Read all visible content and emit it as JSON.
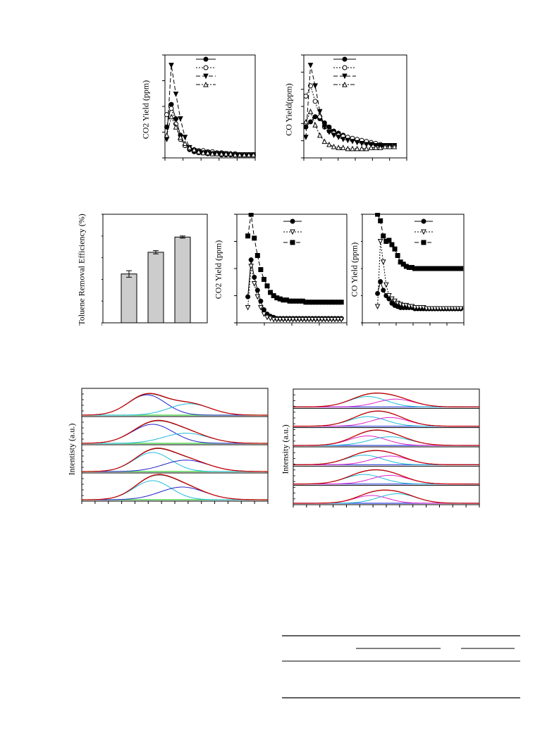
{
  "chart_data": [
    {
      "type": "line",
      "ylabel": "CO2 Yield (ppm)",
      "series": [
        {
          "marker": "filled-circle",
          "values": [
            0.3,
            0.52,
            0.38,
            0.22,
            0.12,
            0.08,
            0.06,
            0.05,
            0.05,
            0.04,
            0.04,
            0.04,
            0.03,
            0.03,
            0.03,
            0.03,
            0.03,
            0.03,
            0.03,
            0.03
          ]
        },
        {
          "marker": "open-circle",
          "values": [
            0.42,
            0.48,
            0.33,
            0.18,
            0.12,
            0.09,
            0.08,
            0.07,
            0.07,
            0.06,
            0.06,
            0.05,
            0.05,
            0.04,
            0.04,
            0.04,
            0.03,
            0.03,
            0.03,
            0.03
          ]
        },
        {
          "marker": "filled-down-triangle",
          "values": [
            0.18,
            0.9,
            0.62,
            0.38,
            0.2,
            0.1,
            0.07,
            0.06,
            0.05,
            0.05,
            0.04,
            0.04,
            0.04,
            0.04,
            0.03,
            0.03,
            0.03,
            0.03,
            0.03,
            0.03
          ]
        },
        {
          "marker": "open-up-triangle",
          "values": [
            0.22,
            0.4,
            0.3,
            0.2,
            0.14,
            0.1,
            0.08,
            0.06,
            0.05,
            0.05,
            0.04,
            0.04,
            0.04,
            0.04,
            0.04,
            0.03,
            0.03,
            0.03,
            0.03,
            0.03
          ]
        }
      ],
      "ylim": [
        0,
        1
      ]
    },
    {
      "type": "line",
      "ylabel": "CO Yield(ppm)",
      "series": [
        {
          "marker": "filled-circle",
          "values": [
            0.3,
            0.35,
            0.4,
            0.38,
            0.34,
            0.3,
            0.26,
            0.24,
            0.22,
            0.2,
            0.18,
            0.17,
            0.16,
            0.15,
            0.14,
            0.13,
            0.12,
            0.12,
            0.12,
            0.12
          ]
        },
        {
          "marker": "open-circle",
          "values": [
            0.6,
            0.7,
            0.55,
            0.4,
            0.3,
            0.26,
            0.24,
            0.22,
            0.21,
            0.2,
            0.19,
            0.18,
            0.17,
            0.16,
            0.15,
            0.14,
            0.13,
            0.12,
            0.12,
            0.12
          ]
        },
        {
          "marker": "filled-down-triangle",
          "values": [
            0.2,
            0.9,
            0.7,
            0.45,
            0.3,
            0.25,
            0.22,
            0.2,
            0.18,
            0.17,
            0.16,
            0.15,
            0.14,
            0.13,
            0.13,
            0.12,
            0.12,
            0.12,
            0.12,
            0.12
          ]
        },
        {
          "marker": "open-up-triangle",
          "values": [
            0.35,
            0.45,
            0.32,
            0.22,
            0.16,
            0.13,
            0.11,
            0.1,
            0.1,
            0.09,
            0.09,
            0.09,
            0.09,
            0.09,
            0.1,
            0.1,
            0.1,
            0.11,
            0.11,
            0.11
          ]
        }
      ],
      "ylim": [
        0,
        1
      ]
    },
    {
      "type": "bar",
      "ylabel": "Toluene Removal Efficiency (%)",
      "values": [
        0.45,
        0.65,
        0.79
      ],
      "errors": [
        0.03,
        0.015,
        0.01
      ],
      "ylim": [
        0,
        1
      ],
      "bar_color": "#cccccc"
    },
    {
      "type": "line",
      "ylabel": "CO2 Yield (ppm)",
      "series": [
        {
          "marker": "filled-circle",
          "values": [
            0.24,
            0.58,
            0.42,
            0.3,
            0.2,
            0.12,
            0.08,
            0.06,
            0.05,
            0.04,
            0.04,
            0.04,
            0.04,
            0.04,
            0.04,
            0.04,
            0.04,
            0.04,
            0.04,
            0.04,
            0.04,
            0.04,
            0.04,
            0.04,
            0.04,
            0.04,
            0.04,
            0.04,
            0.04,
            0.04
          ]
        },
        {
          "marker": "open-down-triangle",
          "values": [
            0.14,
            0.52,
            0.36,
            0.24,
            0.14,
            0.08,
            0.05,
            0.04,
            0.03,
            0.03,
            0.03,
            0.03,
            0.03,
            0.03,
            0.03,
            0.03,
            0.03,
            0.03,
            0.03,
            0.03,
            0.03,
            0.03,
            0.03,
            0.03,
            0.03,
            0.03,
            0.03,
            0.03,
            0.03,
            0.03
          ]
        },
        {
          "marker": "filled-square",
          "values": [
            0.8,
            1.0,
            0.78,
            0.62,
            0.49,
            0.4,
            0.34,
            0.28,
            0.25,
            0.23,
            0.22,
            0.21,
            0.21,
            0.2,
            0.2,
            0.2,
            0.2,
            0.2,
            0.19,
            0.19,
            0.19,
            0.19,
            0.19,
            0.19,
            0.19,
            0.19,
            0.19,
            0.19,
            0.19,
            0.19
          ]
        }
      ],
      "ylim": [
        0,
        1
      ]
    },
    {
      "type": "line",
      "ylabel": "CO Yield (ppm)",
      "series": [
        {
          "marker": "filled-circle",
          "values": [
            0.27,
            0.38,
            0.3,
            0.25,
            0.22,
            0.18,
            0.16,
            0.15,
            0.14,
            0.14,
            0.14,
            0.14,
            0.14,
            0.13,
            0.13,
            0.13,
            0.13,
            0.13,
            0.13,
            0.13,
            0.13,
            0.13,
            0.13,
            0.13,
            0.13,
            0.13,
            0.13,
            0.13,
            0.13,
            0.13
          ]
        },
        {
          "marker": "open-down-triangle",
          "values": [
            0.15,
            0.75,
            0.56,
            0.35,
            0.25,
            0.22,
            0.2,
            0.18,
            0.17,
            0.16,
            0.16,
            0.15,
            0.15,
            0.14,
            0.14,
            0.14,
            0.14,
            0.13,
            0.13,
            0.13,
            0.13,
            0.13,
            0.13,
            0.13,
            0.13,
            0.13,
            0.13,
            0.13,
            0.13,
            0.13
          ]
        },
        {
          "marker": "filled-square",
          "values": [
            1.0,
            0.94,
            0.8,
            0.75,
            0.76,
            0.72,
            0.68,
            0.62,
            0.56,
            0.54,
            0.52,
            0.51,
            0.51,
            0.5,
            0.5,
            0.5,
            0.5,
            0.5,
            0.5,
            0.5,
            0.5,
            0.5,
            0.5,
            0.5,
            0.5,
            0.5,
            0.5,
            0.5,
            0.5,
            0.5
          ]
        }
      ],
      "ylim": [
        0,
        1
      ]
    },
    {
      "type": "area",
      "ylabel": "Intentisty (a.u.)",
      "panels": [
        {
          "peaks": [
            {
              "color": "#2222cc",
              "center": 0.35,
              "width": 0.1,
              "height": 0.8
            },
            {
              "color": "#22bbdd",
              "center": 0.58,
              "width": 0.11,
              "height": 0.45
            }
          ]
        },
        {
          "peaks": [
            {
              "color": "#2222cc",
              "center": 0.38,
              "width": 0.11,
              "height": 0.75
            },
            {
              "color": "#22bbdd",
              "center": 0.56,
              "width": 0.12,
              "height": 0.4
            }
          ]
        },
        {
          "peaks": [
            {
              "color": "#22bbdd",
              "center": 0.38,
              "width": 0.1,
              "height": 0.75
            },
            {
              "color": "#2222cc",
              "center": 0.56,
              "width": 0.12,
              "height": 0.45
            }
          ]
        },
        {
          "peaks": [
            {
              "color": "#22bbdd",
              "center": 0.38,
              "width": 0.1,
              "height": 0.75
            },
            {
              "color": "#2222cc",
              "center": 0.54,
              "width": 0.12,
              "height": 0.5
            }
          ]
        }
      ]
    },
    {
      "type": "area",
      "ylabel": "Intensity (a.u.)",
      "panels": [
        {
          "peaks": [
            {
              "color": "#22bbdd",
              "center": 0.4,
              "width": 0.1,
              "height": 0.6
            },
            {
              "color": "#dd22cc",
              "center": 0.55,
              "width": 0.1,
              "height": 0.45
            }
          ]
        },
        {
          "peaks": [
            {
              "color": "#22bbdd",
              "center": 0.4,
              "width": 0.1,
              "height": 0.55
            },
            {
              "color": "#dd22cc",
              "center": 0.52,
              "width": 0.1,
              "height": 0.5
            }
          ]
        },
        {
          "peaks": [
            {
              "color": "#dd22cc",
              "center": 0.4,
              "width": 0.1,
              "height": 0.55
            },
            {
              "color": "#22bbdd",
              "center": 0.52,
              "width": 0.11,
              "height": 0.5
            }
          ]
        },
        {
          "peaks": [
            {
              "color": "#22bbdd",
              "center": 0.38,
              "width": 0.1,
              "height": 0.55
            },
            {
              "color": "#dd22cc",
              "center": 0.52,
              "width": 0.1,
              "height": 0.5
            }
          ]
        },
        {
          "peaks": [
            {
              "color": "#22bbdd",
              "center": 0.38,
              "width": 0.1,
              "height": 0.55
            },
            {
              "color": "#dd22cc",
              "center": 0.52,
              "width": 0.1,
              "height": 0.5
            }
          ]
        },
        {
          "peaks": [
            {
              "color": "#dd22cc",
              "center": 0.42,
              "width": 0.09,
              "height": 0.45
            },
            {
              "color": "#22bbdd",
              "center": 0.56,
              "width": 0.1,
              "height": 0.55
            }
          ]
        }
      ]
    }
  ]
}
